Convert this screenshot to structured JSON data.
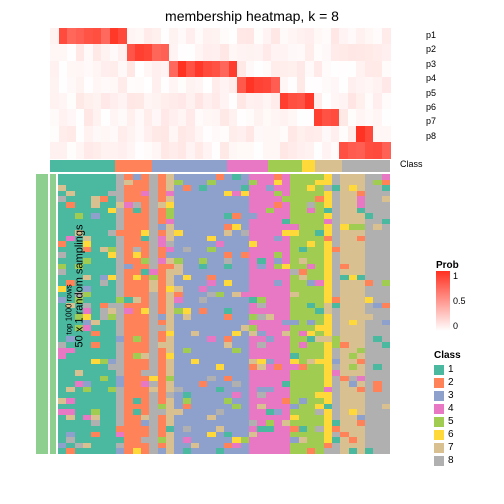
{
  "title": "membership heatmap, k = 8",
  "bg": "#ffffff",
  "prob": {
    "label": "Prob",
    "ticks": [
      "1",
      "0.5",
      "0"
    ],
    "lo": "#ffffff",
    "hi": "#ff3020",
    "rows": 8,
    "cols": 40,
    "rowLabels": [
      "p1",
      "p2",
      "p3",
      "p4",
      "p5",
      "p6",
      "p7",
      "p8"
    ],
    "highs": [
      [
        1,
        9
      ],
      [
        9,
        14
      ],
      [
        14,
        22
      ],
      [
        22,
        27
      ],
      [
        27,
        31
      ],
      [
        31,
        34
      ],
      [
        36,
        38
      ],
      [
        34,
        40
      ]
    ],
    "noise": 0.12
  },
  "classBar": {
    "widths": [
      0.19,
      0.11,
      0.22,
      0.12,
      0.1,
      0.04,
      0.08,
      0.14
    ]
  },
  "classColors": {
    "1": "#4bb8a0",
    "2": "#ff8258",
    "3": "#8ea0cc",
    "4": "#e878c4",
    "5": "#a0cc52",
    "6": "#ffd83a",
    "7": "#d8c090",
    "8": "#b0b0b0"
  },
  "classLegend": {
    "label": "Class",
    "items": [
      "1",
      "2",
      "3",
      "4",
      "5",
      "6",
      "7",
      "8"
    ]
  },
  "main": {
    "rows": 50,
    "cols": 40,
    "colClass": [
      1,
      1,
      1,
      1,
      1,
      1,
      1,
      8,
      2,
      2,
      2,
      8,
      2,
      7,
      3,
      3,
      3,
      3,
      3,
      3,
      3,
      3,
      3,
      4,
      4,
      4,
      4,
      4,
      5,
      5,
      5,
      5,
      6,
      8,
      7,
      7,
      7,
      8,
      8,
      8
    ],
    "noiseProb": 0.22
  },
  "ylabel1": "50 x 1 random samplings",
  "ylabel2": "top 1000 rows"
}
